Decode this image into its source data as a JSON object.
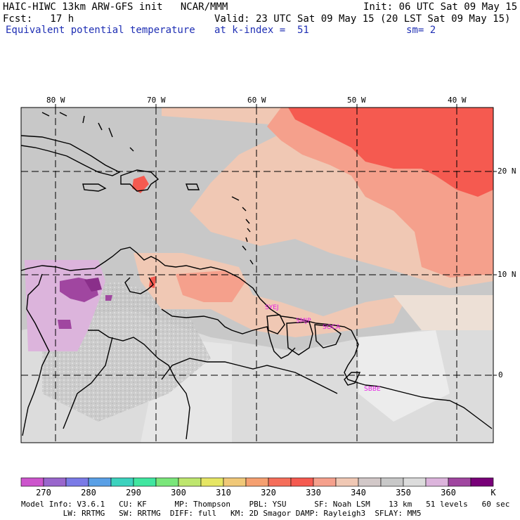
{
  "header": {
    "model_title": "HAIC-HIWC 13km ARW-GFS init   NCAR/MMM",
    "init": "Init: 06 UTC Sat 09 May 15",
    "fcst": "Fcst:   17 h",
    "valid": "Valid: 23 UTC Sat 09 May 15 (20 LST Sat 09 May 15)",
    "field": "Equivalent potential temperature",
    "level": "at k-index =  51",
    "smooth": "sm= 2"
  },
  "map": {
    "longitude_labels": [
      "80 W",
      "70 W",
      "60 W",
      "50 W",
      "40 W"
    ],
    "latitude_labels": [
      "20 N",
      "10 N",
      "0"
    ],
    "station_labels": [
      "SYEJ",
      "SMJP",
      "SOCA",
      "SBBE"
    ]
  },
  "colorbar": {
    "colors": [
      "#cc55cc",
      "#9966cc",
      "#7a7ae6",
      "#5aa0e6",
      "#3cd2be",
      "#40e6a0",
      "#7ae67a",
      "#bee66e",
      "#e6e664",
      "#f0c878",
      "#f5a070",
      "#f56e5a",
      "#f55a50",
      "#f5a08c",
      "#f0c8b4",
      "#d2c8c8",
      "#c8c8c8",
      "#dcdcdc",
      "#dcb4dc",
      "#a046a0",
      "#780078"
    ],
    "tick_labels": [
      "270",
      "280",
      "290",
      "300",
      "310",
      "320",
      "330",
      "340",
      "350",
      "360"
    ],
    "unit": "K"
  },
  "footer": {
    "line1": "Model Info: V3.6.1   CU: KF      MP: Thompson    PBL: YSU      SF: Noah LSM    13 km   51 levels   60 sec",
    "line2": "         LW: RRTMG   SW: RRTMG  DIFF: full   KM: 2D Smagor DAMP: Rayleigh3  SFLAY: MM5"
  }
}
